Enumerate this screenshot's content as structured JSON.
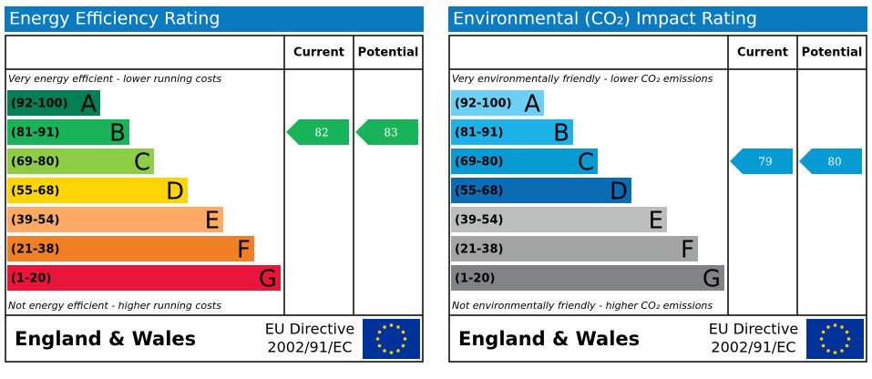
{
  "panels": [
    {
      "title": "Energy Efficiency Rating",
      "headers": [
        "Current",
        "Potential"
      ],
      "top_note": "Very energy efficient - lower running costs",
      "bottom_note": "Not energy efficient - higher running costs",
      "bands": [
        {
          "label": "(92-100)",
          "letter": "A",
          "color": "#008054"
        },
        {
          "label": "(81-91)",
          "letter": "B",
          "color": "#19b459"
        },
        {
          "label": "(69-80)",
          "letter": "C",
          "color": "#8dce46"
        },
        {
          "label": "(55-68)",
          "letter": "D",
          "color": "#ffd500"
        },
        {
          "label": "(39-54)",
          "letter": "E",
          "color": "#fcaa65"
        },
        {
          "label": "(21-38)",
          "letter": "F",
          "color": "#ef8023"
        },
        {
          "label": "(1-20)",
          "letter": "G",
          "color": "#e9153b"
        }
      ],
      "current": 82,
      "potential": 83,
      "country": "England & Wales",
      "directive": [
        "EU Directive",
        "2002/91/EC"
      ]
    },
    {
      "title": "Environmental (CO₂) Impact Rating",
      "headers": [
        "Current",
        "Potential"
      ],
      "top_note": "Very environmentally friendly - lower CO₂ emissions",
      "bottom_note": "Not environmentally friendly - higher CO₂ emissions",
      "bands": [
        {
          "label": "(92-100)",
          "letter": "A",
          "color": "#6ccff6"
        },
        {
          "label": "(81-91)",
          "letter": "B",
          "color": "#1eb2e9"
        },
        {
          "label": "(69-80)",
          "letter": "C",
          "color": "#079ad3"
        },
        {
          "label": "(55-68)",
          "letter": "D",
          "color": "#0a6cb4"
        },
        {
          "label": "(39-54)",
          "letter": "E",
          "color": "#bbbdbf"
        },
        {
          "label": "(21-38)",
          "letter": "F",
          "color": "#a2a4a6"
        },
        {
          "label": "(1-20)",
          "letter": "G",
          "color": "#818386"
        }
      ],
      "current": 79,
      "potential": 80,
      "country": "England & Wales",
      "directive": [
        "EU Directive",
        "2002/91/EC"
      ]
    }
  ]
}
